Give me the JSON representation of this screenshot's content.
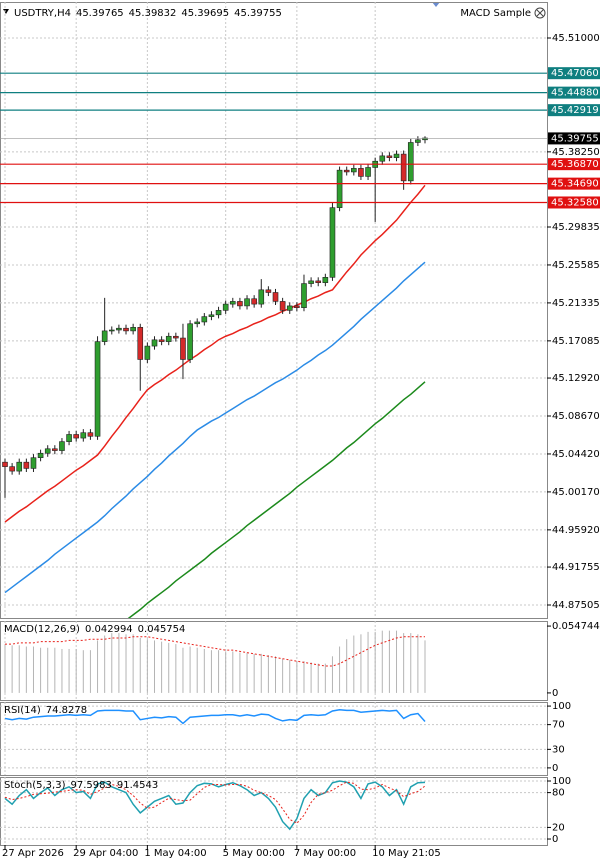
{
  "expert": "MACD Sample",
  "chart_data": [
    {
      "type": "candlestick",
      "title": "USDTRY,H4",
      "header_values": [
        45.39765,
        45.39832,
        45.39695,
        45.39755
      ],
      "categories": [
        "27 Apr 2026",
        null,
        null,
        null,
        null,
        null,
        null,
        null,
        null,
        null,
        "29 Apr 04:00",
        null,
        null,
        null,
        null,
        null,
        null,
        null,
        null,
        null,
        "1 May 04:00",
        null,
        null,
        null,
        null,
        null,
        null,
        null,
        null,
        null,
        null,
        "5 May 00:00",
        null,
        null,
        null,
        null,
        null,
        null,
        null,
        null,
        null,
        "7 May 00:00",
        null,
        null,
        null,
        null,
        null,
        null,
        null,
        null,
        null,
        null,
        "10 May 21:05",
        null,
        null,
        null,
        null,
        null,
        null,
        null
      ],
      "open": [
        45.035,
        45.03,
        45.025,
        45.035,
        45.028,
        45.04,
        45.045,
        45.05,
        45.048,
        45.058,
        45.066,
        45.062,
        45.068,
        45.064,
        45.17,
        45.182,
        45.183,
        45.185,
        45.182,
        45.186,
        45.15,
        45.165,
        45.172,
        45.17,
        45.176,
        45.174,
        45.15,
        45.19,
        45.192,
        45.198,
        45.2,
        45.205,
        45.212,
        45.215,
        45.21,
        45.218,
        45.212,
        45.228,
        45.225,
        45.215,
        45.205,
        45.21,
        45.208,
        45.235,
        45.238,
        45.236,
        45.242,
        45.32,
        45.362,
        45.36,
        45.364,
        45.355,
        45.365,
        45.372,
        45.378,
        45.376,
        45.38,
        45.35,
        45.393,
        45.396
      ],
      "high": [
        45.039,
        45.034,
        45.039,
        45.039,
        45.044,
        45.049,
        45.054,
        45.054,
        45.062,
        45.07,
        45.07,
        45.072,
        45.072,
        45.176,
        45.219,
        45.187,
        45.189,
        45.189,
        45.19,
        45.19,
        45.169,
        45.176,
        45.176,
        45.18,
        45.18,
        45.19,
        45.194,
        45.196,
        45.202,
        45.204,
        45.209,
        45.216,
        45.219,
        45.219,
        45.222,
        45.222,
        45.24,
        45.232,
        45.229,
        45.219,
        45.214,
        45.214,
        45.245,
        45.242,
        45.242,
        45.246,
        45.326,
        45.366,
        45.366,
        45.368,
        45.368,
        45.369,
        45.376,
        45.382,
        45.382,
        45.384,
        45.384,
        45.397,
        45.4,
        45.4
      ],
      "low": [
        44.995,
        45.021,
        45.021,
        45.024,
        45.024,
        45.036,
        45.041,
        45.044,
        45.044,
        45.054,
        45.058,
        45.058,
        45.06,
        45.06,
        45.166,
        45.178,
        45.179,
        45.178,
        45.178,
        45.115,
        45.146,
        45.161,
        45.166,
        45.166,
        45.17,
        45.128,
        45.146,
        45.186,
        45.188,
        45.194,
        45.196,
        45.201,
        45.208,
        45.206,
        45.206,
        45.208,
        45.208,
        45.221,
        45.211,
        45.201,
        45.201,
        45.204,
        45.204,
        45.231,
        45.232,
        45.232,
        45.238,
        45.316,
        45.356,
        45.356,
        45.351,
        45.351,
        45.304,
        45.368,
        45.372,
        45.372,
        45.34,
        45.346,
        45.389,
        45.392
      ],
      "close": [
        45.03,
        45.025,
        45.035,
        45.028,
        45.04,
        45.045,
        45.05,
        45.048,
        45.058,
        45.066,
        45.062,
        45.068,
        45.064,
        45.17,
        45.182,
        45.183,
        45.185,
        45.182,
        45.186,
        45.15,
        45.165,
        45.172,
        45.17,
        45.176,
        45.174,
        45.15,
        45.19,
        45.192,
        45.198,
        45.2,
        45.205,
        45.212,
        45.215,
        45.21,
        45.218,
        45.212,
        45.228,
        45.225,
        45.215,
        45.205,
        45.21,
        45.208,
        45.235,
        45.238,
        45.236,
        45.242,
        45.32,
        45.362,
        45.36,
        45.364,
        45.355,
        45.365,
        45.372,
        45.378,
        45.376,
        45.38,
        45.35,
        45.393,
        45.396,
        45.398
      ],
      "up_color": "#2f9e2f",
      "down_color": "#d42a2a",
      "series": [
        {
          "color": "#e8221b",
          "values": [
            44.968,
            44.974,
            44.98,
            44.985,
            44.991,
            44.997,
            45.003,
            45.008,
            45.014,
            45.02,
            45.026,
            45.031,
            45.037,
            45.043,
            45.053,
            45.064,
            45.074,
            45.085,
            45.095,
            45.106,
            45.116,
            45.122,
            45.127,
            45.133,
            45.138,
            45.144,
            45.15,
            45.155,
            45.161,
            45.166,
            45.172,
            45.176,
            45.179,
            45.183,
            45.186,
            45.19,
            45.193,
            45.197,
            45.2,
            45.204,
            45.207,
            45.211,
            45.214,
            45.218,
            45.221,
            45.225,
            45.228,
            45.238,
            45.248,
            45.257,
            45.267,
            45.275,
            45.283,
            45.29,
            45.298,
            45.306,
            45.316,
            45.326,
            45.335,
            45.345
          ]
        },
        {
          "color": "#2b8be6",
          "values": [
            44.889,
            44.895,
            44.901,
            44.907,
            44.913,
            44.919,
            44.925,
            44.932,
            44.938,
            44.944,
            44.95,
            44.956,
            44.962,
            44.968,
            44.975,
            44.983,
            44.99,
            44.997,
            45.005,
            45.012,
            45.019,
            45.027,
            45.034,
            45.042,
            45.049,
            45.056,
            45.064,
            45.071,
            45.076,
            45.081,
            45.085,
            45.09,
            45.095,
            45.1,
            45.105,
            45.109,
            45.114,
            45.119,
            45.124,
            45.128,
            45.133,
            45.138,
            45.144,
            45.149,
            45.155,
            45.16,
            45.166,
            45.173,
            45.18,
            45.187,
            45.195,
            45.202,
            45.209,
            45.216,
            45.223,
            45.23,
            45.238,
            45.245,
            45.252,
            45.259
          ]
        },
        {
          "color": "#1c8a1c",
          "values": [
            null,
            null,
            null,
            null,
            null,
            null,
            null,
            null,
            null,
            null,
            null,
            null,
            null,
            null,
            null,
            null,
            null,
            44.858,
            44.864,
            44.87,
            44.877,
            44.883,
            44.889,
            44.895,
            44.902,
            44.908,
            44.914,
            44.92,
            44.926,
            44.933,
            44.939,
            44.945,
            44.951,
            44.957,
            44.964,
            44.97,
            44.976,
            44.982,
            44.988,
            44.994,
            45.0,
            45.007,
            45.013,
            45.019,
            45.025,
            45.031,
            45.037,
            45.044,
            45.051,
            45.057,
            45.064,
            45.071,
            45.078,
            45.084,
            45.091,
            45.098,
            45.105,
            45.111,
            45.118,
            45.125
          ]
        }
      ],
      "levels": [
        {
          "value": 45.4706,
          "label": "45.47060",
          "color": "#0f7f80"
        },
        {
          "value": 45.4488,
          "label": "45.44880",
          "color": "#0f7f80"
        },
        {
          "value": 45.42919,
          "color": "#0f7f80"
        },
        {
          "value": 45.3687,
          "label": "45.36870",
          "color": "#e01010"
        },
        {
          "value": 45.3469,
          "label": "45.34690",
          "color": "#e01010"
        },
        {
          "value": 45.3258,
          "label": "45.32580",
          "color": "#e01010"
        }
      ],
      "current": 45.39755,
      "ylim": [
        44.8605,
        45.5503
      ],
      "yticks": [
        {
          "value": 45.51,
          "label": "45.51000"
        },
        {
          "value": 45.3825,
          "label": "45.38250"
        },
        45.29835,
        45.25585,
        45.21335,
        45.17085,
        {
          "value": 45.1292,
          "label": "45.12920"
        },
        {
          "value": 45.0867,
          "label": "45.08670"
        },
        {
          "value": 45.0442,
          "label": "45.04420"
        },
        {
          "value": 45.0017,
          "label": "45.00170"
        },
        {
          "value": 44.9592,
          "label": "44.95920"
        },
        44.91755,
        44.87505
      ],
      "grid": true
    },
    {
      "type": "macd",
      "title": "MACD(12,26,9)",
      "header_values": [
        0.042994,
        0.045754
      ],
      "color": "#b4b4b4",
      "values": [
        0.04,
        0.039,
        0.039,
        0.038,
        0.038,
        0.037,
        0.037,
        0.037,
        0.036,
        0.036,
        0.036,
        0.035,
        0.035,
        0.043,
        0.047,
        0.049,
        0.049,
        0.048,
        0.048,
        0.045,
        0.044,
        0.043,
        0.042,
        0.041,
        0.04,
        0.037,
        0.038,
        0.037,
        0.036,
        0.035,
        0.035,
        0.034,
        0.034,
        0.033,
        0.033,
        0.032,
        0.032,
        0.031,
        0.03,
        0.028,
        0.027,
        0.026,
        0.026,
        0.025,
        0.024,
        0.024,
        0.03,
        0.038,
        0.044,
        0.047,
        0.048,
        0.05,
        0.05,
        0.051,
        0.051,
        0.051,
        0.049,
        0.049,
        0.048,
        0.043
      ],
      "series": [
        {
          "color": "#e8221b",
          "style": "dotted",
          "values": [
            0.04,
            0.04,
            0.041,
            0.041,
            0.041,
            0.042,
            0.042,
            0.042,
            0.042,
            0.043,
            0.043,
            0.043,
            0.044,
            0.044,
            0.044,
            0.045,
            0.045,
            0.045,
            0.046,
            0.046,
            0.046,
            0.045,
            0.044,
            0.043,
            0.042,
            0.041,
            0.04,
            0.039,
            0.038,
            0.037,
            0.036,
            0.035,
            0.035,
            0.034,
            0.033,
            0.032,
            0.031,
            0.03,
            0.029,
            0.028,
            0.027,
            0.026,
            0.025,
            0.024,
            0.023,
            0.022,
            0.022,
            0.024,
            0.027,
            0.03,
            0.033,
            0.036,
            0.039,
            0.041,
            0.043,
            0.045,
            0.046,
            0.046,
            0.046,
            0.046
          ]
        }
      ],
      "ylim": [
        -0.0058,
        0.0589
      ],
      "yticks": [
        0.054744,
        0
      ]
    },
    {
      "type": "line",
      "title": "RSI(14)",
      "header_values": [
        74.8278
      ],
      "series": [
        {
          "color": "#1e90ff",
          "values": [
            80,
            78,
            80,
            79,
            82,
            83,
            84,
            84,
            85,
            86,
            85,
            86,
            85,
            92,
            93,
            93,
            93,
            92,
            92,
            78,
            80,
            82,
            81,
            83,
            82,
            72,
            82,
            83,
            84,
            85,
            85,
            86,
            86,
            84,
            86,
            84,
            87,
            86,
            80,
            76,
            78,
            77,
            85,
            86,
            85,
            86,
            92,
            94,
            93,
            93,
            90,
            91,
            92,
            93,
            92,
            93,
            80,
            86,
            88,
            75
          ]
        }
      ],
      "ylim": [
        -11.5,
        106.6
      ],
      "yticks": [
        100,
        70,
        30,
        0
      ],
      "grid": true
    },
    {
      "type": "line",
      "title": "Stoch(5,3,3)",
      "header_values": [
        97.5983,
        91.4543
      ],
      "series": [
        {
          "color": "#20a0b0",
          "values": [
            70,
            60,
            75,
            85,
            70,
            80,
            88,
            75,
            85,
            90,
            80,
            82,
            70,
            95,
            98,
            90,
            85,
            80,
            60,
            45,
            55,
            65,
            70,
            75,
            60,
            62,
            80,
            92,
            96,
            95,
            90,
            94,
            97,
            92,
            85,
            75,
            80,
            70,
            55,
            30,
            17,
            35,
            70,
            85,
            75,
            80,
            97,
            100,
            98,
            90,
            70,
            95,
            98,
            90,
            75,
            85,
            60,
            90,
            97,
            97.6
          ]
        },
        {
          "color": "#e8221b",
          "style": "dotted",
          "values": [
            72,
            68,
            70,
            73,
            77,
            78,
            79,
            81,
            82,
            84,
            85,
            84,
            77,
            82,
            88,
            94,
            91,
            85,
            75,
            62,
            53,
            55,
            63,
            70,
            68,
            66,
            67,
            78,
            89,
            94,
            94,
            93,
            94,
            94,
            91,
            84,
            80,
            75,
            68,
            52,
            34,
            27,
            41,
            63,
            77,
            80,
            84,
            92,
            98,
            96,
            86,
            85,
            88,
            94,
            88,
            83,
            73,
            78,
            82,
            91.5
          ]
        }
      ],
      "ylim": [
        -10.3,
        106.9
      ],
      "yticks": [
        100,
        80,
        20,
        0
      ],
      "grid": true
    }
  ]
}
